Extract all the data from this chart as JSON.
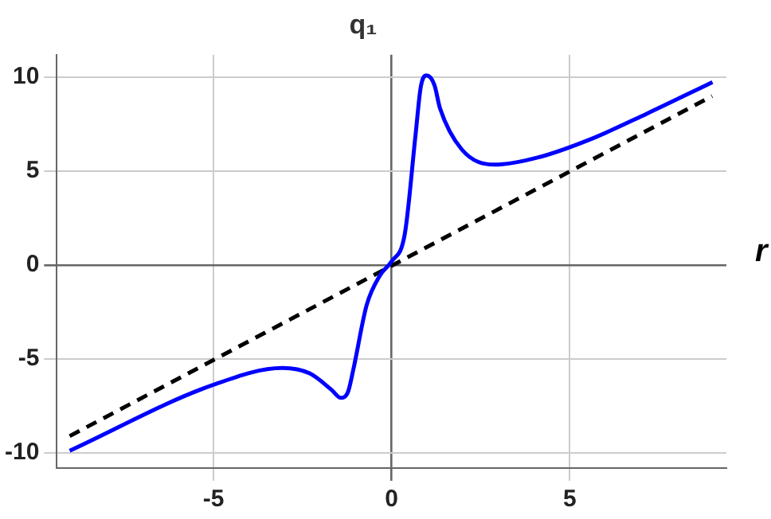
{
  "chart_data": {
    "type": "line",
    "title": "q₁",
    "xlabel": "r",
    "xlim": [
      -9.4,
      9.4
    ],
    "ylim": [
      -10.8,
      11.2
    ],
    "xticks": [
      -5,
      0,
      5
    ],
    "yticks": [
      -10,
      -5,
      0,
      5,
      10
    ],
    "grid": true,
    "marker": "none",
    "legend": false,
    "series": [
      {
        "color": "#0000ff",
        "line_style": "solid",
        "x": [
          -9.04,
          -5.05,
          -3.06,
          -2.3,
          -1.69,
          -1.43,
          -1.23,
          -1.08,
          -0.7,
          -0.32,
          0,
          0.37,
          0.67,
          0.82,
          0.98,
          1.2,
          1.36,
          1.97,
          2.88,
          4.1,
          5.63,
          7.15,
          9.01
        ],
        "values": [
          -9.88,
          -6.4,
          -5.47,
          -5.76,
          -6.63,
          -7.06,
          -6.77,
          -5.6,
          -2.12,
          -0.52,
          0.2,
          1.66,
          6.9,
          9.5,
          10.1,
          9.6,
          8.34,
          6.16,
          5.35,
          5.73,
          6.74,
          8.05,
          9.74
        ]
      },
      {
        "color": "#000000",
        "line_style": "dashed",
        "x": [
          -9.04,
          9.0
        ],
        "values": [
          -9.1,
          9.0
        ]
      }
    ]
  }
}
